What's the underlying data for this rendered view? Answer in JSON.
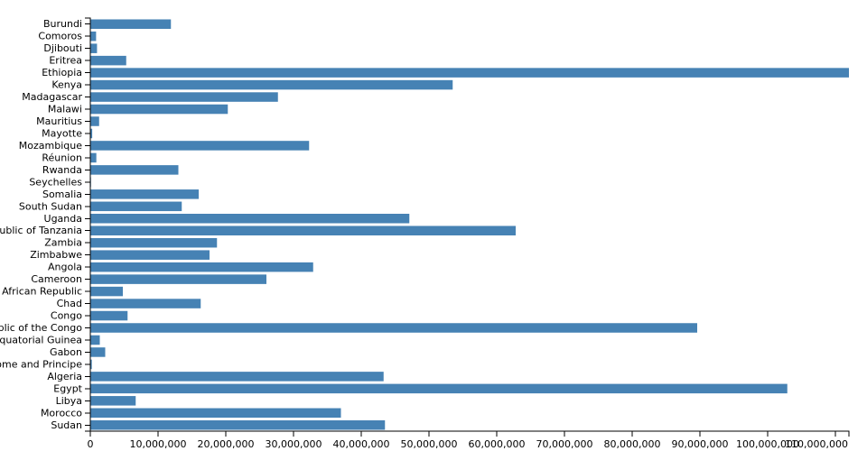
{
  "chart_data": {
    "type": "bar",
    "orientation": "horizontal",
    "title": "",
    "xlabel": "",
    "ylabel": "",
    "bar_color": "#4682b4",
    "xlim": [
      0,
      112000000
    ],
    "x_ticks": [
      0,
      10000000,
      20000000,
      30000000,
      40000000,
      50000000,
      60000000,
      70000000,
      80000000,
      90000000,
      100000000,
      110000000
    ],
    "x_tick_labels": [
      "0",
      "10,000,000",
      "20,000,000",
      "30,000,000",
      "40,000,000",
      "50,000,000",
      "60,000,000",
      "70,000,000",
      "80,000,000",
      "90,000,000",
      "100,000,000",
      "110,000,000"
    ],
    "grid": false,
    "legend": "none",
    "categories": [
      "Burundi",
      "Comoros",
      "Djibouti",
      "Eritrea",
      "Ethiopia",
      "Kenya",
      "Madagascar",
      "Malawi",
      "Mauritius",
      "Mayotte",
      "Mozambique",
      "Réunion",
      "Rwanda",
      "Seychelles",
      "Somalia",
      "South Sudan",
      "Uganda",
      "United Republic of Tanzania",
      "Zambia",
      "Zimbabwe",
      "Angola",
      "Cameroon",
      "Central African Republic",
      "Chad",
      "Congo",
      "Democratic Republic of the Congo",
      "Equatorial Guinea",
      "Gabon",
      "Sao Tome and Principe",
      "Algeria",
      "Egypt",
      "Libya",
      "Morocco",
      "Sudan"
    ],
    "values": [
      11900000,
      850000,
      990000,
      5300000,
      112000000,
      53500000,
      27700000,
      20300000,
      1300000,
      280000,
      32300000,
      890000,
      13000000,
      98000,
      16000000,
      13500000,
      47100000,
      62800000,
      18700000,
      17600000,
      32900000,
      26000000,
      4800000,
      16300000,
      5500000,
      89600000,
      1400000,
      2200000,
      220000,
      43300000,
      102900000,
      6700000,
      37000000,
      43500000
    ]
  }
}
